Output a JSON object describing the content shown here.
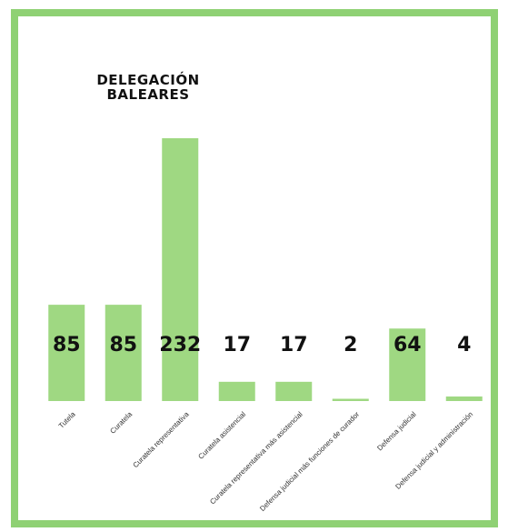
{
  "chart_data": {
    "type": "bar",
    "title": "DELEGACIÓN BALEARES",
    "categories": [
      "Tutela",
      "Curatela",
      "Curatela representativa",
      "Curatela asistencial",
      "Curatela representativa más asistencial",
      "Defensa judicial más funciones de curador",
      "Defensa judicial",
      "Defensa judicial y administración"
    ],
    "values": [
      85,
      85,
      232,
      17,
      17,
      2,
      64,
      4
    ],
    "color": "#9fd882"
  }
}
